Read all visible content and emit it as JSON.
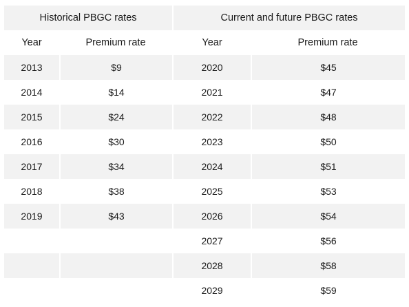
{
  "groups": {
    "historical": "Historical PBGC rates",
    "current": "Current and future PBGC rates"
  },
  "columns": {
    "year": "Year",
    "rate": "Premium rate"
  },
  "rows": [
    {
      "hy": "2013",
      "hr": "$9",
      "cy": "2020",
      "cr": "$45"
    },
    {
      "hy": "2014",
      "hr": "$14",
      "cy": "2021",
      "cr": "$47"
    },
    {
      "hy": "2015",
      "hr": "$24",
      "cy": "2022",
      "cr": "$48"
    },
    {
      "hy": "2016",
      "hr": "$30",
      "cy": "2023",
      "cr": "$50"
    },
    {
      "hy": "2017",
      "hr": "$34",
      "cy": "2024",
      "cr": "$51"
    },
    {
      "hy": "2018",
      "hr": "$38",
      "cy": "2025",
      "cr": "$53"
    },
    {
      "hy": "2019",
      "hr": "$43",
      "cy": "2026",
      "cr": "$54"
    },
    {
      "hy": "",
      "hr": "",
      "cy": "2027",
      "cr": "$56"
    },
    {
      "hy": "",
      "hr": "",
      "cy": "2028",
      "cr": "$58"
    },
    {
      "hy": "",
      "hr": "",
      "cy": "2029",
      "cr": "$59"
    }
  ],
  "colors": {
    "shade": "#f2f2f2",
    "text": "#1a1a1a"
  }
}
